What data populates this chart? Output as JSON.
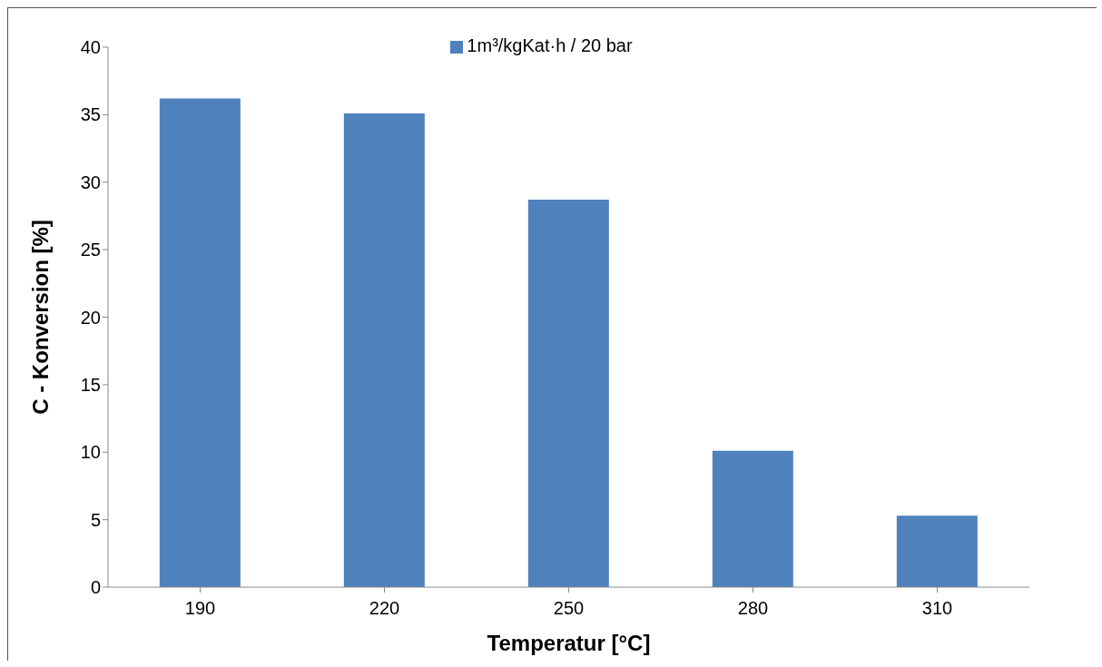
{
  "chart_data": {
    "type": "bar",
    "categories": [
      "190",
      "220",
      "250",
      "280",
      "310"
    ],
    "series": [
      {
        "name": "1m³/kgKat·h / 20 bar",
        "color": "#4f81bd",
        "values": [
          36.2,
          35.1,
          28.7,
          10.1,
          5.3
        ]
      }
    ],
    "xlabel": "Temperatur [°C]",
    "ylabel": "C - Konversion [%]",
    "ylim": [
      0,
      40
    ],
    "yticks": [
      0,
      5,
      10,
      15,
      20,
      25,
      30,
      35,
      40
    ],
    "grid": false,
    "legend": "top"
  }
}
